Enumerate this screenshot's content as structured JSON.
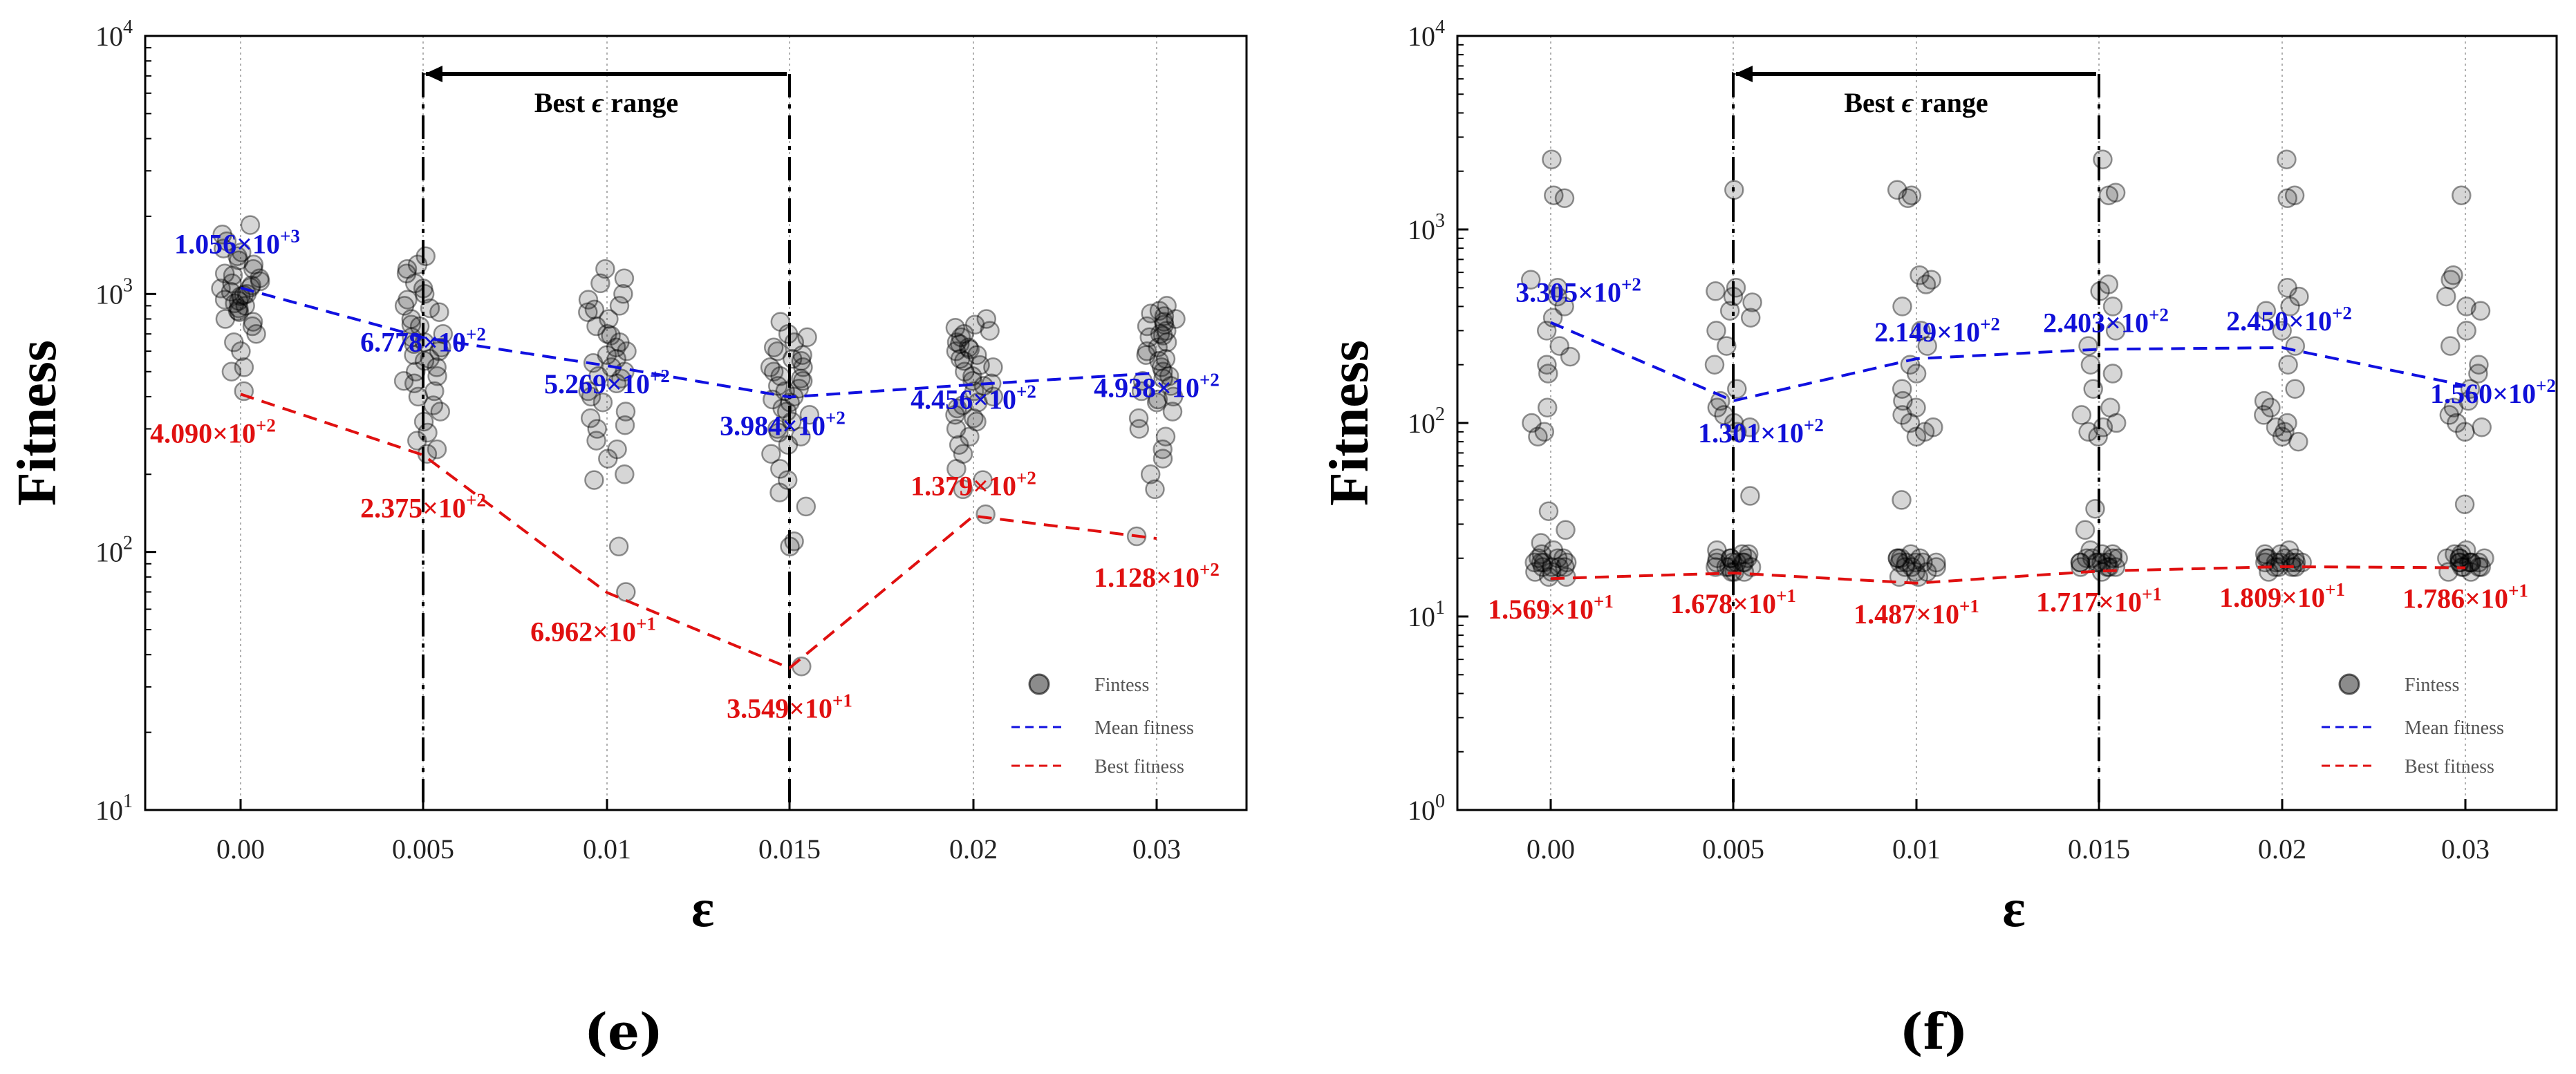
{
  "chart_data": [
    {
      "type": "scatter",
      "panel_label": "(e)",
      "xlabel": "ε",
      "ylabel": "Fitness",
      "x_categories": [
        "0.00",
        "0.005",
        "0.01",
        "0.015",
        "0.02",
        "0.03"
      ],
      "y_scale": "log",
      "ylim": [
        10,
        10000
      ],
      "y_ticks": [
        {
          "base": "10",
          "exp": "1"
        },
        {
          "base": "10",
          "exp": "2"
        },
        {
          "base": "10",
          "exp": "3"
        },
        {
          "base": "10",
          "exp": "4"
        }
      ],
      "best_range": {
        "label_prefix": "Best ",
        "label_symbol": "ϵ",
        "label_suffix": " range",
        "from_index": 1,
        "to_index": 3
      },
      "legend": {
        "position": "bottom-right",
        "fitness": "Fintess",
        "mean": "Mean fitness",
        "best": "Best fitness"
      },
      "mean_fitness": {
        "values": [
          1056,
          677.8,
          526.9,
          398.4,
          445.6,
          493.8
        ],
        "labels": [
          {
            "mantissa": "1.056",
            "exp": "+3"
          },
          {
            "mantissa": "6.778",
            "exp": "+2"
          },
          {
            "mantissa": "5.269",
            "exp": "+2"
          },
          {
            "mantissa": "3.984",
            "exp": "+2"
          },
          {
            "mantissa": "4.456",
            "exp": "+2"
          },
          {
            "mantissa": "4.938",
            "exp": "+2"
          }
        ]
      },
      "best_fitness": {
        "values": [
          409.0,
          237.5,
          69.62,
          35.49,
          137.9,
          112.8
        ],
        "labels": [
          {
            "mantissa": "4.090",
            "exp": "+2"
          },
          {
            "mantissa": "2.375",
            "exp": "+2"
          },
          {
            "mantissa": "6.962",
            "exp": "+1"
          },
          {
            "mantissa": "3.549",
            "exp": "+1"
          },
          {
            "mantissa": "1.379",
            "exp": "+2"
          },
          {
            "mantissa": "1.128",
            "exp": "+2"
          }
        ]
      },
      "fitness_points": [
        [
          1850,
          1500,
          1400,
          1300,
          1600,
          1250,
          1200,
          1150,
          1100,
          1080,
          1050,
          1020,
          1000,
          980,
          950,
          920,
          900,
          880,
          850,
          800,
          750,
          700,
          650,
          600,
          520,
          500,
          420,
          1450,
          1350,
          1180,
          1120,
          1060,
          990,
          940,
          860,
          780,
          1700
        ],
        [
          1400,
          1300,
          1100,
          1000,
          950,
          900,
          850,
          800,
          750,
          700,
          680,
          650,
          620,
          600,
          580,
          550,
          520,
          500,
          480,
          450,
          420,
          400,
          370,
          350,
          320,
          290,
          270,
          250,
          240,
          1200,
          880,
          760,
          640,
          560,
          460,
          1050,
          1250
        ],
        [
          1250,
          1100,
          1000,
          950,
          900,
          850,
          800,
          750,
          700,
          650,
          620,
          600,
          580,
          560,
          540,
          520,
          500,
          480,
          450,
          420,
          400,
          380,
          350,
          330,
          300,
          270,
          250,
          230,
          200,
          190,
          105,
          70,
          870,
          690,
          470,
          310,
          1150
        ],
        [
          780,
          680,
          650,
          620,
          600,
          580,
          550,
          520,
          500,
          480,
          460,
          440,
          420,
          400,
          380,
          360,
          340,
          320,
          300,
          280,
          260,
          240,
          210,
          190,
          170,
          150,
          110,
          105,
          36,
          700,
          560,
          430,
          350,
          290,
          520,
          470,
          390
        ],
        [
          800,
          760,
          720,
          700,
          680,
          650,
          620,
          600,
          580,
          550,
          520,
          500,
          480,
          460,
          440,
          420,
          400,
          380,
          360,
          340,
          320,
          300,
          280,
          260,
          240,
          210,
          190,
          175,
          140,
          740,
          610,
          530,
          450,
          370,
          330,
          640,
          560
        ],
        [
          900,
          860,
          820,
          800,
          780,
          750,
          720,
          700,
          680,
          650,
          620,
          600,
          580,
          550,
          520,
          500,
          480,
          460,
          440,
          420,
          400,
          380,
          350,
          330,
          300,
          280,
          250,
          230,
          200,
          175,
          115,
          840,
          690,
          560,
          470,
          390,
          760
        ]
      ]
    },
    {
      "type": "scatter",
      "panel_label": "(f)",
      "xlabel": "ε",
      "ylabel": "Fitness",
      "x_categories": [
        "0.00",
        "0.005",
        "0.01",
        "0.015",
        "0.02",
        "0.03"
      ],
      "y_scale": "log",
      "ylim": [
        1,
        10000
      ],
      "y_ticks": [
        {
          "base": "10",
          "exp": "0"
        },
        {
          "base": "10",
          "exp": "1"
        },
        {
          "base": "10",
          "exp": "2"
        },
        {
          "base": "10",
          "exp": "3"
        },
        {
          "base": "10",
          "exp": "4"
        }
      ],
      "best_range": {
        "label_prefix": "Best ",
        "label_symbol": "ϵ",
        "label_suffix": " range",
        "from_index": 1,
        "to_index": 3
      },
      "legend": {
        "position": "bottom-right",
        "fitness": "Fintess",
        "mean": "Mean fitness",
        "best": "Best fitness"
      },
      "mean_fitness": {
        "values": [
          330.5,
          130.1,
          214.9,
          240.3,
          245.0,
          156.0
        ],
        "labels": [
          {
            "mantissa": "3.305",
            "exp": "+2"
          },
          {
            "mantissa": "1.301",
            "exp": "+2"
          },
          {
            "mantissa": "2.149",
            "exp": "+2"
          },
          {
            "mantissa": "2.403",
            "exp": "+2"
          },
          {
            "mantissa": "2.450",
            "exp": "+2"
          },
          {
            "mantissa": "1.560",
            "exp": "+2"
          }
        ]
      },
      "best_fitness": {
        "values": [
          15.69,
          16.78,
          14.87,
          17.17,
          18.09,
          17.86
        ],
        "labels": [
          {
            "mantissa": "1.569",
            "exp": "+1"
          },
          {
            "mantissa": "1.678",
            "exp": "+1"
          },
          {
            "mantissa": "1.487",
            "exp": "+1"
          },
          {
            "mantissa": "1.717",
            "exp": "+1"
          },
          {
            "mantissa": "1.809",
            "exp": "+1"
          },
          {
            "mantissa": "1.786",
            "exp": "+1"
          }
        ]
      },
      "fitness_points": [
        [
          2300,
          1500,
          1450,
          550,
          500,
          450,
          400,
          350,
          300,
          250,
          220,
          200,
          180,
          120,
          100,
          90,
          85,
          35,
          28,
          24,
          22,
          20,
          20,
          19,
          19,
          19,
          18,
          18,
          18,
          17,
          17,
          16,
          16,
          20,
          19,
          18,
          21
        ],
        [
          1600,
          500,
          480,
          450,
          420,
          380,
          350,
          300,
          250,
          200,
          150,
          130,
          120,
          110,
          100,
          95,
          90,
          42,
          22,
          21,
          21,
          20,
          20,
          20,
          19,
          19,
          19,
          19,
          18,
          18,
          18,
          17,
          17,
          17,
          20,
          19,
          18
        ],
        [
          1600,
          1500,
          1450,
          580,
          550,
          520,
          400,
          300,
          250,
          200,
          180,
          150,
          130,
          120,
          110,
          100,
          95,
          90,
          85,
          40,
          21,
          20,
          20,
          20,
          19,
          19,
          19,
          19,
          18,
          18,
          18,
          17,
          17,
          16,
          16,
          20,
          19
        ],
        [
          2300,
          1550,
          1500,
          520,
          480,
          400,
          300,
          250,
          200,
          180,
          150,
          120,
          110,
          100,
          95,
          90,
          85,
          36,
          28,
          22,
          21,
          21,
          20,
          20,
          20,
          19,
          19,
          19,
          19,
          18,
          18,
          18,
          18,
          17,
          20,
          19,
          19
        ],
        [
          2300,
          1500,
          1450,
          500,
          450,
          400,
          380,
          300,
          250,
          200,
          150,
          130,
          120,
          110,
          100,
          95,
          90,
          85,
          80,
          22,
          21,
          21,
          20,
          20,
          20,
          19,
          19,
          19,
          19,
          18,
          18,
          18,
          18,
          17,
          20,
          19,
          19
        ],
        [
          1500,
          580,
          550,
          450,
          400,
          380,
          300,
          250,
          200,
          180,
          150,
          130,
          120,
          110,
          100,
          95,
          90,
          38,
          22,
          21,
          21,
          20,
          20,
          20,
          19,
          19,
          19,
          19,
          18,
          18,
          18,
          18,
          17,
          17,
          20,
          19,
          19
        ]
      ]
    }
  ]
}
